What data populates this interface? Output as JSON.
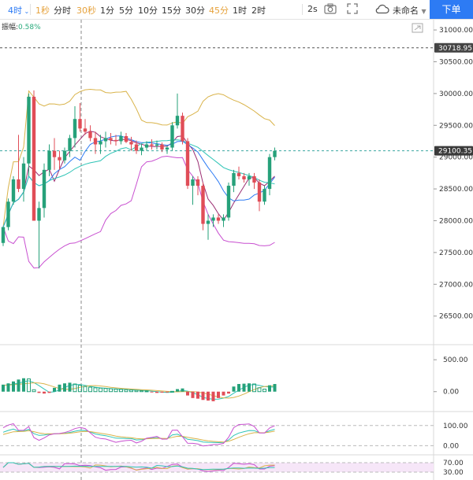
{
  "toolbar": {
    "timeframes": [
      {
        "label": "4时",
        "state": "active",
        "dropdown": true
      },
      {
        "label": "1秒",
        "state": "fav"
      },
      {
        "label": "分时",
        "state": "normal"
      },
      {
        "label": "30秒",
        "state": "fav"
      },
      {
        "label": "1分",
        "state": "normal"
      },
      {
        "label": "5分",
        "state": "normal"
      },
      {
        "label": "10分",
        "state": "normal"
      },
      {
        "label": "15分",
        "state": "normal"
      },
      {
        "label": "30分",
        "state": "normal"
      },
      {
        "label": "45分",
        "state": "fav"
      },
      {
        "label": "1时",
        "state": "normal"
      },
      {
        "label": "2时",
        "state": "normal"
      }
    ],
    "refresh_label": "2s",
    "camera_icon": "camera-icon",
    "fullscreen_icon": "fullscreen-icon",
    "cloud_icon": "cloud-icon",
    "layout_name": "未命名",
    "order_button": "下单"
  },
  "indicator": {
    "amplitude_label": "振幅:",
    "amplitude_value": "0.58%"
  },
  "colors": {
    "up": "#26a17a",
    "down": "#e04d57",
    "boll_upper": "#d9b34a",
    "boll_lower": "#c84fd0",
    "ma_short": "#9b2d72",
    "ma_mid": "#2d7bf4",
    "ma_long": "#2ec4b6",
    "accent": "#2d7bf4"
  },
  "chart_data": [
    {
      "type": "candlestick",
      "name": "price",
      "ylim": [
        26100,
        31100
      ],
      "y_ticks": [
        "31000.00",
        "30500.00",
        "30000.00",
        "29500.00",
        "29000.00",
        "28500.00",
        "28000.00",
        "27500.00",
        "27000.00",
        "26500.00"
      ],
      "tags": [
        {
          "label": "30718.95",
          "value": 30718.95
        },
        {
          "label": "29100.35",
          "value": 29100.35
        }
      ],
      "candles": [
        [
          27650,
          27900,
          27600,
          27900
        ],
        [
          27900,
          28350,
          27850,
          28300
        ],
        [
          28300,
          28700,
          28250,
          28650
        ],
        [
          28650,
          29350,
          28450,
          28500
        ],
        [
          28500,
          29000,
          28300,
          28900
        ],
        [
          28900,
          30000,
          28700,
          29950
        ],
        [
          29950,
          30050,
          28000,
          28000
        ],
        [
          28000,
          28300,
          27250,
          28200
        ],
        [
          28200,
          28900,
          28050,
          28800
        ],
        [
          28800,
          29200,
          28700,
          29100
        ],
        [
          29100,
          29300,
          28800,
          29000
        ],
        [
          29000,
          29100,
          28800,
          28950
        ],
        [
          28950,
          29150,
          28900,
          29100
        ],
        [
          29100,
          29350,
          29000,
          29300
        ],
        [
          29300,
          29800,
          29150,
          29600
        ],
        [
          29600,
          29850,
          29400,
          29450
        ],
        [
          29450,
          29600,
          29350,
          29400
        ],
        [
          29400,
          29500,
          29250,
          29300
        ],
        [
          29300,
          29400,
          29050,
          29200
        ],
        [
          29200,
          29350,
          29050,
          29250
        ],
        [
          29250,
          29400,
          29150,
          29300
        ],
        [
          29300,
          29380,
          29200,
          29270
        ],
        [
          29270,
          29350,
          29180,
          29250
        ],
        [
          29250,
          29400,
          29200,
          29330
        ],
        [
          29330,
          29380,
          29220,
          29240
        ],
        [
          29240,
          29320,
          29100,
          29200
        ],
        [
          29200,
          29260,
          29050,
          29100
        ],
        [
          29100,
          29200,
          29030,
          29150
        ],
        [
          29150,
          29250,
          29100,
          29200
        ],
        [
          29200,
          29280,
          29120,
          29180
        ],
        [
          29180,
          29260,
          29120,
          29200
        ],
        [
          29200,
          29230,
          29080,
          29120
        ],
        [
          29120,
          29180,
          29050,
          29150
        ],
        [
          29150,
          29550,
          29100,
          29500
        ],
        [
          29500,
          30000,
          29450,
          29650
        ],
        [
          29650,
          29700,
          29200,
          29250
        ],
        [
          29250,
          29300,
          28500,
          28550
        ],
        [
          28550,
          28700,
          28250,
          28650
        ],
        [
          28650,
          28700,
          28400,
          28550
        ],
        [
          28550,
          28600,
          27850,
          27950
        ],
        [
          27950,
          28100,
          27700,
          28000
        ],
        [
          28000,
          28100,
          27900,
          28050
        ],
        [
          28050,
          28100,
          27950,
          28000
        ],
        [
          28000,
          28100,
          27900,
          28050
        ],
        [
          28050,
          28600,
          28000,
          28550
        ],
        [
          28550,
          28800,
          28450,
          28750
        ],
        [
          28750,
          28850,
          28650,
          28700
        ],
        [
          28700,
          28750,
          28600,
          28650
        ],
        [
          28650,
          28750,
          28550,
          28700
        ],
        [
          28700,
          28750,
          28500,
          28600
        ],
        [
          28600,
          28650,
          28150,
          28300
        ],
        [
          28300,
          28550,
          28250,
          28500
        ],
        [
          28500,
          29050,
          28400,
          29000
        ],
        [
          29000,
          29150,
          28950,
          29100
        ]
      ]
    },
    {
      "type": "histogram",
      "name": "macd",
      "ylim": [
        -250,
        650
      ],
      "y_ticks": [
        "500.00",
        "0.00"
      ],
      "values": [
        110,
        130,
        160,
        190,
        210,
        200,
        30,
        -20,
        -30,
        -20,
        60,
        110,
        130,
        140,
        120,
        100,
        80,
        70,
        60,
        55,
        50,
        45,
        40,
        35,
        30,
        25,
        20,
        15,
        10,
        -10,
        -20,
        -15,
        -10,
        5,
        40,
        50,
        -60,
        -100,
        -110,
        -130,
        -140,
        -150,
        -100,
        -60,
        -30,
        80,
        120,
        125,
        130,
        120,
        60,
        40,
        100,
        120
      ]
    },
    {
      "type": "line",
      "name": "kdj",
      "ylim": [
        -30,
        150
      ],
      "y_ticks": [
        "100.00",
        "0.00"
      ]
    },
    {
      "type": "line",
      "name": "rsi",
      "ylim": [
        10,
        90
      ],
      "y_ticks": [
        "70.00",
        "30.00"
      ]
    }
  ]
}
